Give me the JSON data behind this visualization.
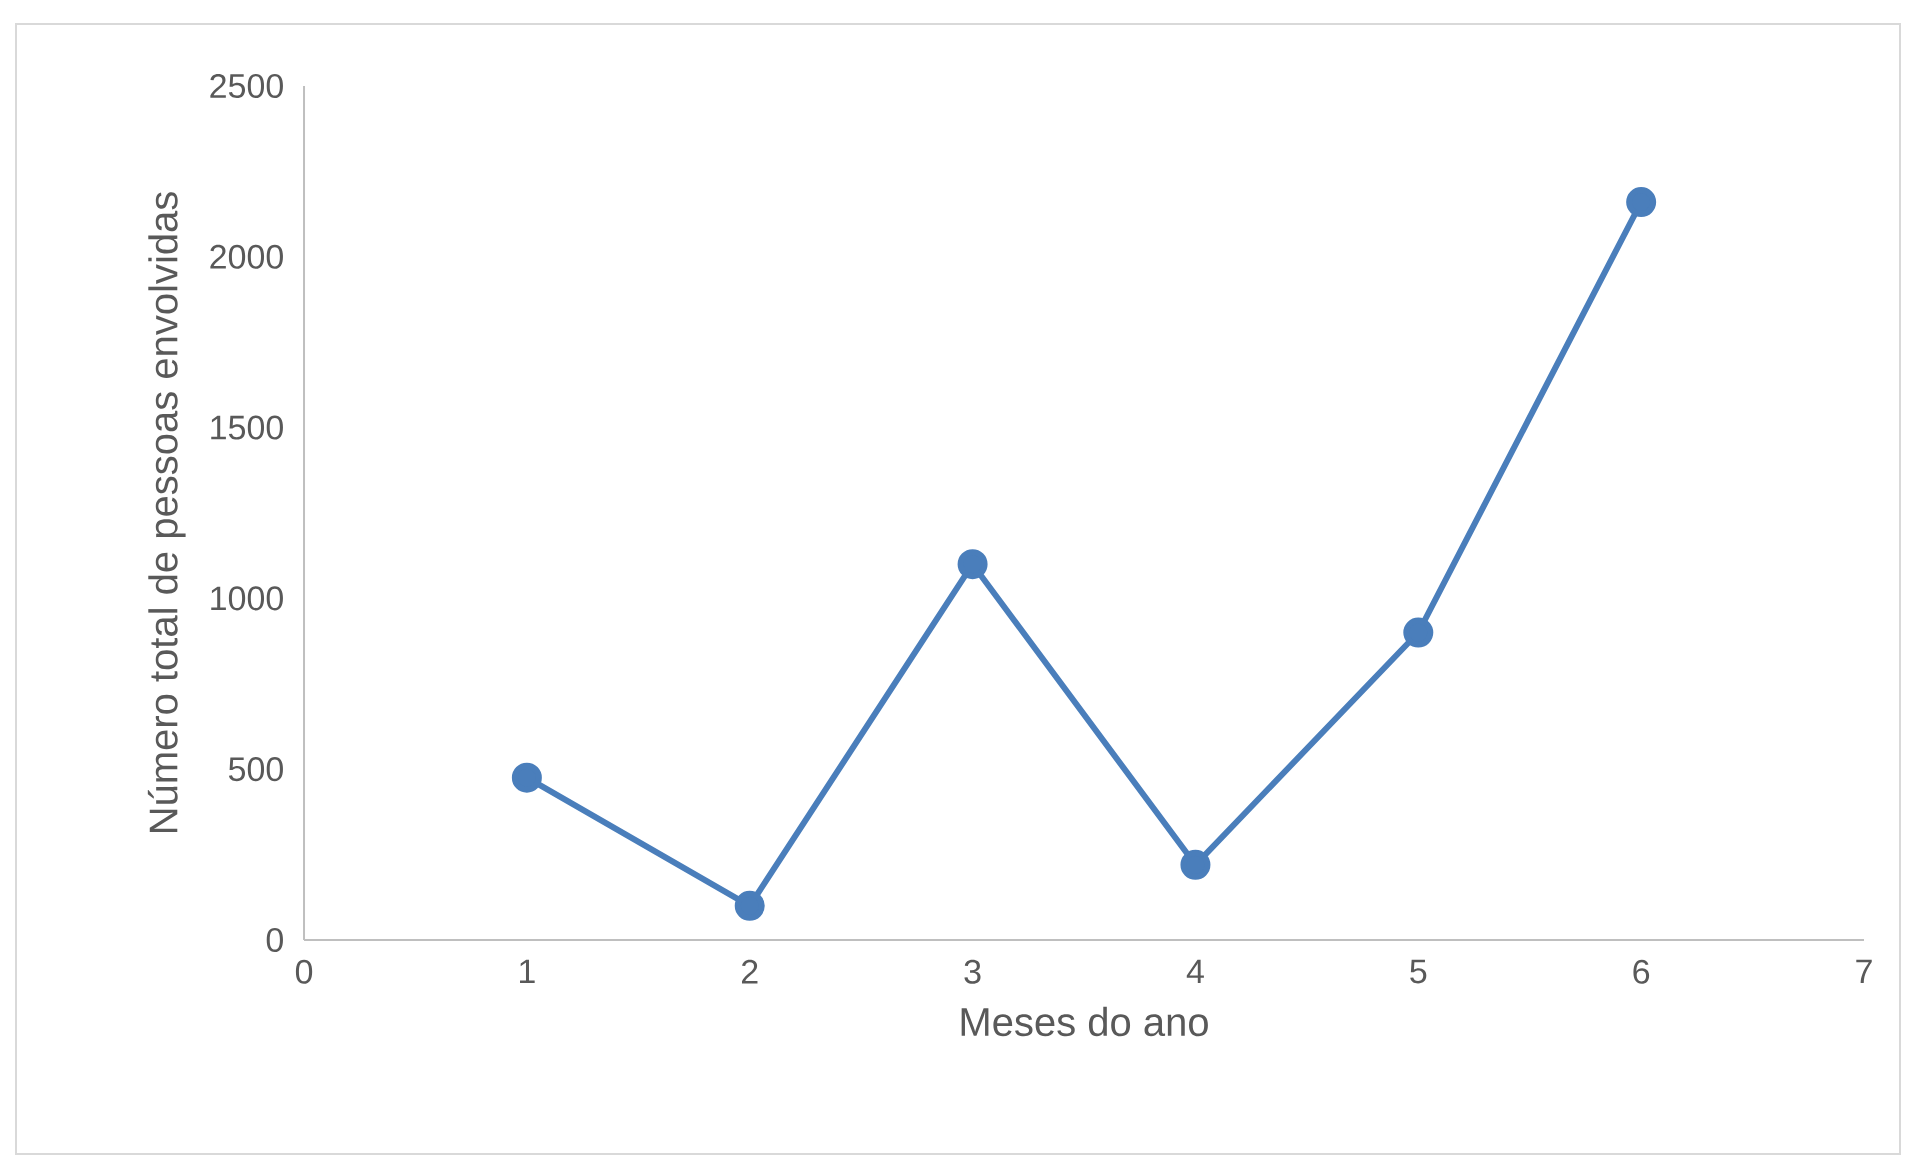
{
  "chart_data": {
    "type": "line",
    "xlabel": "Meses do ano",
    "ylabel": "Número total de pessoas envolvidas",
    "series": [
      {
        "color": "#4a7ebb",
        "x": [
          1,
          2,
          3,
          4,
          5,
          6
        ],
        "values": [
          475,
          100,
          1100,
          220,
          900,
          2160
        ]
      }
    ],
    "xlim": [
      0,
      7
    ],
    "xticks": [
      0,
      1,
      2,
      3,
      4,
      5,
      6,
      7
    ],
    "ylim": [
      0,
      2500
    ],
    "yticks": [
      0,
      500,
      1000,
      1500,
      2000,
      2500
    ],
    "marker": "circle",
    "line_style": "solid"
  }
}
